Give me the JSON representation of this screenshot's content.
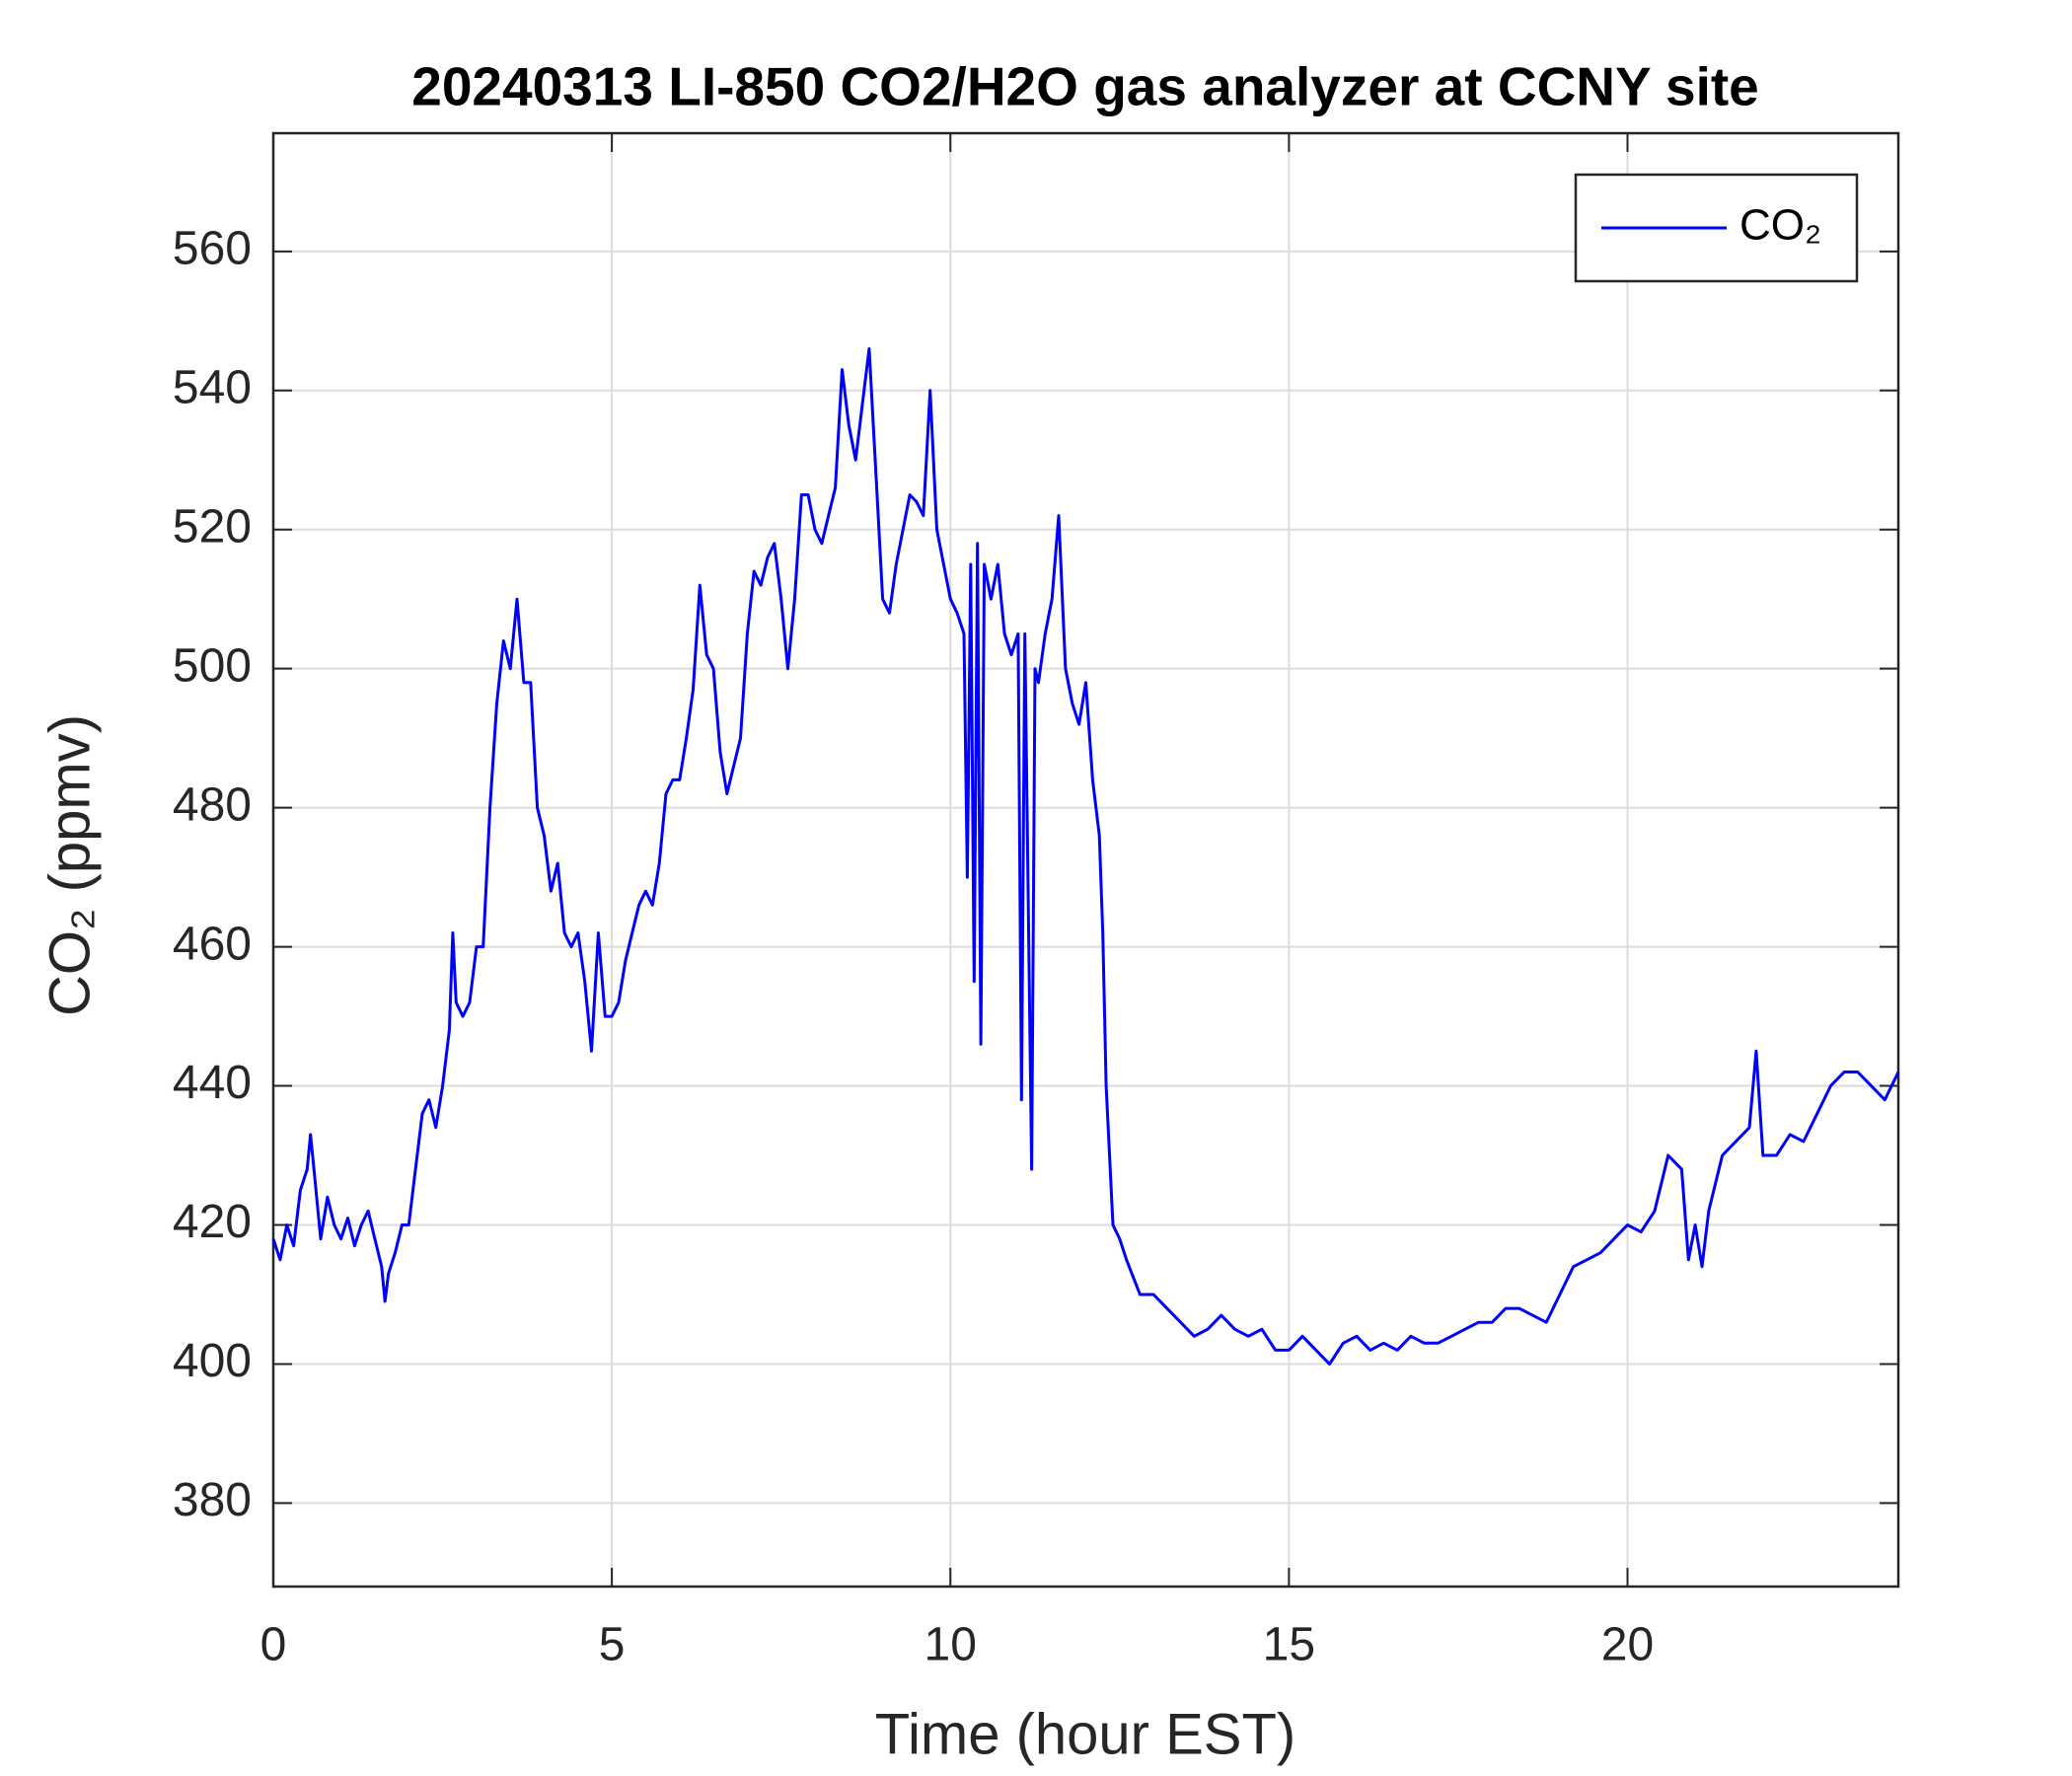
{
  "chart_data": {
    "type": "line",
    "title": "20240313 LI-850 CO2/H2O gas analyzer at CCNY site",
    "x_label": "Time (hour EST)",
    "y_label": "CO₂ (ppmv)",
    "xlim": [
      0,
      24
    ],
    "xticks": [
      0,
      5,
      10,
      15,
      20
    ],
    "ylim": [
      368,
      577
    ],
    "yticks": [
      380,
      400,
      420,
      440,
      460,
      480,
      500,
      520,
      540,
      560
    ],
    "grid": true,
    "legend": "upper right",
    "x": [
      0,
      0.1,
      0.2,
      0.3,
      0.4,
      0.5,
      0.55,
      0.6,
      0.7,
      0.8,
      0.9,
      1.0,
      1.1,
      1.2,
      1.3,
      1.4,
      1.5,
      1.6,
      1.65,
      1.7,
      1.8,
      1.9,
      2.0,
      2.1,
      2.2,
      2.3,
      2.4,
      2.5,
      2.6,
      2.65,
      2.7,
      2.8,
      2.9,
      3.0,
      3.1,
      3.2,
      3.3,
      3.4,
      3.5,
      3.6,
      3.7,
      3.8,
      3.9,
      4.0,
      4.1,
      4.2,
      4.3,
      4.4,
      4.5,
      4.6,
      4.7,
      4.8,
      4.9,
      5.0,
      5.1,
      5.2,
      5.3,
      5.4,
      5.5,
      5.6,
      5.7,
      5.8,
      5.9,
      6.0,
      6.1,
      6.2,
      6.3,
      6.4,
      6.5,
      6.6,
      6.7,
      6.8,
      6.9,
      7.0,
      7.1,
      7.2,
      7.3,
      7.4,
      7.5,
      7.6,
      7.7,
      7.8,
      7.9,
      8.0,
      8.1,
      8.2,
      8.3,
      8.4,
      8.5,
      8.6,
      8.7,
      8.8,
      8.9,
      9.0,
      9.1,
      9.2,
      9.3,
      9.4,
      9.5,
      9.6,
      9.7,
      9.8,
      9.9,
      10.0,
      10.1,
      10.2,
      10.25,
      10.3,
      10.35,
      10.4,
      10.45,
      10.5,
      10.6,
      10.7,
      10.8,
      10.9,
      11.0,
      11.05,
      11.1,
      11.2,
      11.25,
      11.3,
      11.4,
      11.5,
      11.6,
      11.7,
      11.8,
      11.9,
      12.0,
      12.1,
      12.2,
      12.25,
      12.3,
      12.4,
      12.5,
      12.6,
      12.8,
      13.0,
      13.2,
      13.4,
      13.6,
      13.8,
      14.0,
      14.2,
      14.4,
      14.6,
      14.8,
      15.0,
      15.2,
      15.4,
      15.6,
      15.8,
      16.0,
      16.2,
      16.4,
      16.6,
      16.8,
      17.0,
      17.2,
      17.4,
      17.6,
      17.8,
      18.0,
      18.2,
      18.4,
      18.6,
      18.8,
      19.0,
      19.2,
      19.4,
      19.6,
      19.8,
      20.0,
      20.2,
      20.4,
      20.6,
      20.8,
      20.9,
      21.0,
      21.1,
      21.2,
      21.4,
      21.6,
      21.8,
      21.9,
      22.0,
      22.2,
      22.4,
      22.6,
      22.8,
      23.0,
      23.2,
      23.4,
      23.6,
      23.8,
      24.0
    ],
    "series": [
      {
        "name": "CO₂",
        "color": "#0000ff",
        "values": [
          418,
          415,
          420,
          417,
          425,
          428,
          433,
          428,
          418,
          424,
          420,
          418,
          421,
          417,
          420,
          422,
          418,
          414,
          409,
          413,
          416,
          420,
          420,
          428,
          436,
          438,
          434,
          440,
          448,
          462,
          452,
          450,
          452,
          460,
          460,
          480,
          495,
          504,
          500,
          510,
          498,
          498,
          480,
          476,
          468,
          472,
          462,
          460,
          462,
          455,
          445,
          462,
          450,
          450,
          452,
          458,
          462,
          466,
          468,
          466,
          472,
          482,
          484,
          484,
          490,
          497,
          512,
          502,
          500,
          488,
          482,
          486,
          490,
          505,
          514,
          512,
          516,
          518,
          510,
          500,
          510,
          525,
          525,
          520,
          518,
          522,
          526,
          543,
          535,
          530,
          538,
          546,
          528,
          510,
          508,
          515,
          520,
          525,
          524,
          522,
          540,
          520,
          515,
          510,
          508,
          505,
          470,
          515,
          455,
          518,
          446,
          515,
          510,
          515,
          505,
          502,
          505,
          438,
          505,
          428,
          500,
          498,
          505,
          510,
          522,
          500,
          495,
          492,
          498,
          484,
          476,
          462,
          440,
          420,
          418,
          415,
          410,
          410,
          408,
          406,
          404,
          405,
          407,
          405,
          404,
          405,
          402,
          402,
          404,
          402,
          400,
          403,
          404,
          402,
          403,
          402,
          404,
          403,
          403,
          404,
          405,
          406,
          406,
          408,
          408,
          407,
          406,
          410,
          414,
          415,
          416,
          418,
          420,
          419,
          422,
          430,
          428,
          415,
          420,
          414,
          422,
          430,
          432,
          434,
          445,
          430,
          430,
          433,
          432,
          436,
          440,
          442,
          442,
          440,
          438,
          442
        ]
      }
    ]
  }
}
